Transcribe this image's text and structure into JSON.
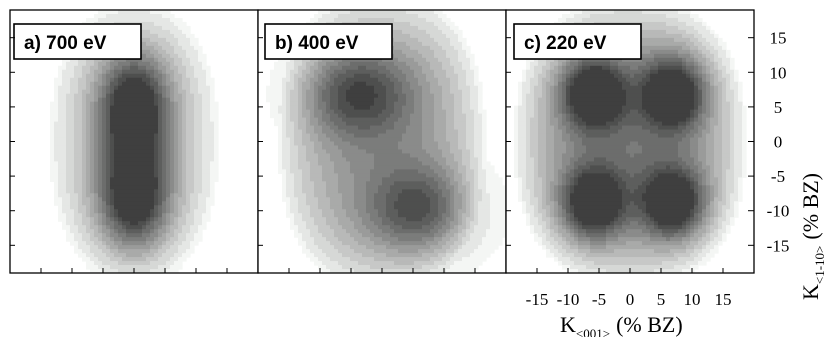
{
  "chart_data": {
    "type": "heatmap",
    "panels": [
      {
        "label": "a) 700 eV",
        "peaks": [
          [
            0,
            5
          ],
          [
            0,
            -8
          ]
        ],
        "peak_level": 0.95,
        "spread": [
          4.0,
          5.5
        ],
        "base_level": 0.35,
        "envelope": [
          14,
          20
        ]
      },
      {
        "label": "b) 400 eV",
        "peaks": [
          [
            -4,
            7
          ],
          [
            6,
            -10
          ]
        ],
        "peak_level": 0.55,
        "spread": [
          6,
          4.5
        ],
        "base_level": 0.55,
        "envelope": [
          17,
          22
        ]
      },
      {
        "label": "c) 220 eV",
        "peaks": [
          [
            -6,
            7
          ],
          [
            7,
            7
          ],
          [
            -6,
            -9
          ],
          [
            7,
            -9
          ]
        ],
        "peak_level": 0.85,
        "spread": [
          3.5,
          3.5
        ],
        "base_level": 0.7,
        "envelope": [
          19,
          21
        ]
      }
    ],
    "x_range": [
      -20,
      20
    ],
    "y_range": [
      -19,
      19
    ],
    "x_ticks": [
      "-15",
      "-10",
      "-5",
      "0",
      "5",
      "10",
      "15"
    ],
    "x_tick_values": [
      -15,
      -10,
      -5,
      0,
      5,
      10,
      15
    ],
    "y_ticks": [
      "15",
      "10",
      "5",
      "0",
      "-5",
      "-10",
      "-15"
    ],
    "y_tick_values": [
      15,
      10,
      5,
      0,
      -5,
      -10,
      -15
    ],
    "x_axis_title": "K",
    "x_axis_subscript": "<001>",
    "x_axis_unit": "(% BZ)",
    "y_axis_title": "K",
    "y_axis_subscript": "<1-10>",
    "y_axis_unit": "(% BZ)",
    "contour_levels": 12,
    "colors": {
      "low": "#f4f6f4",
      "high": "#2b2b2b",
      "line": "#000000"
    }
  }
}
